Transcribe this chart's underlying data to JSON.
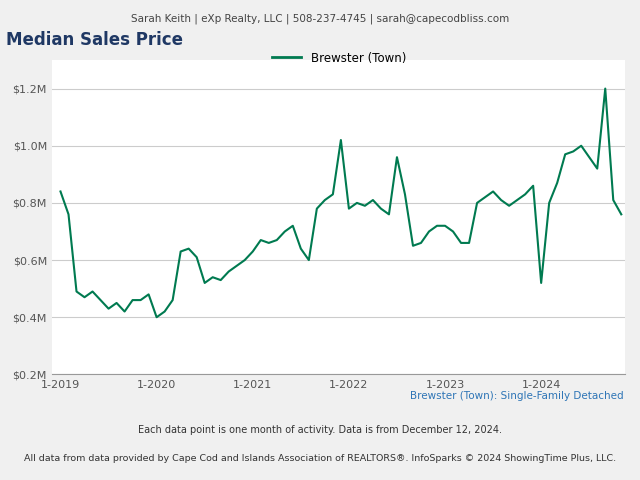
{
  "header_text": "Sarah Keith | eXp Realty, LLC | 508-237-4745 | sarah@capecodbliss.com",
  "title": "Median Sales Price",
  "legend_label": "Brewster (Town)",
  "line_color": "#007a50",
  "subtitle": "Brewster (Town): Single-Family Detached",
  "subtitle_color": "#2E75B6",
  "footnote1": "Each data point is one month of activity. Data is from December 12, 2024.",
  "footnote2": "All data from data provided by Cape Cod and Islands Association of REALTORS®. InfoSparks © 2024 ShowingTime Plus, LLC.",
  "background_color": "#f0f0f0",
  "plot_bg_color": "#ffffff",
  "ylim": [
    200000,
    1300000
  ],
  "yticks": [
    200000,
    400000,
    600000,
    800000,
    1000000,
    1200000
  ],
  "ytick_labels": [
    "$0.2M",
    "$0.4M",
    "$0.6M",
    "$0.8M",
    "$1.0M",
    "$1.2M"
  ],
  "xtick_labels": [
    "1-2019",
    "1-2020",
    "1-2021",
    "1-2022",
    "1-2023",
    "1-2024"
  ],
  "values": [
    840000,
    760000,
    490000,
    470000,
    490000,
    460000,
    430000,
    450000,
    420000,
    460000,
    460000,
    480000,
    400000,
    420000,
    460000,
    630000,
    640000,
    610000,
    520000,
    540000,
    530000,
    560000,
    580000,
    600000,
    630000,
    670000,
    660000,
    670000,
    700000,
    720000,
    640000,
    600000,
    780000,
    810000,
    830000,
    1020000,
    780000,
    800000,
    790000,
    810000,
    780000,
    760000,
    960000,
    830000,
    650000,
    660000,
    700000,
    720000,
    720000,
    700000,
    660000,
    660000,
    800000,
    820000,
    840000,
    810000,
    790000,
    810000,
    830000,
    860000,
    520000,
    800000,
    870000,
    970000,
    980000,
    1000000,
    960000,
    920000,
    1200000,
    810000,
    760000
  ]
}
